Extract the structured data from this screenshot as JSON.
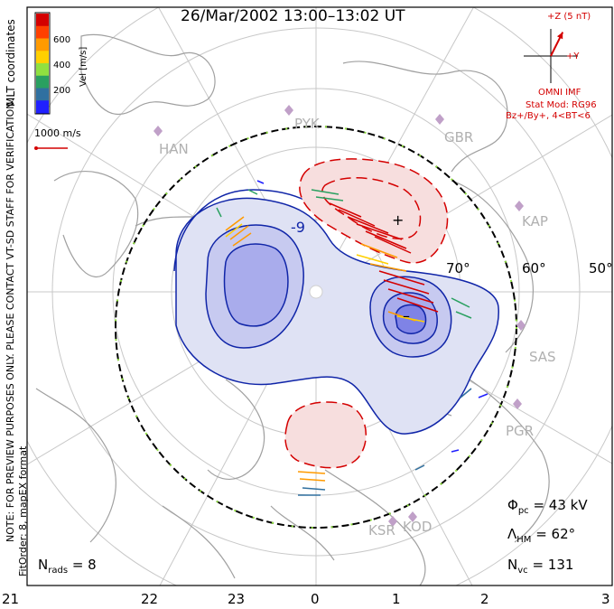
{
  "title": "26/Mar/2002 13:00–13:02 UT",
  "colorbar": {
    "label": "Vel [m/s]",
    "ticks": [
      "600",
      "400",
      "200"
    ],
    "colors": [
      "#d40000",
      "#ff4000",
      "#ff9a00",
      "#ffd000",
      "#90e040",
      "#2aa060",
      "#3070a0",
      "#2020ff"
    ]
  },
  "coord_label": "MLT coordinates",
  "scale_vector_label": "1000 m/s",
  "notice_text": "NOTE: FOR PREVIEW PURPOSES ONLY. PLEASE CONTACT VT-SD STAFF FOR VERIFICATION.",
  "fit_text": "FitOrder: 8, mapEX format",
  "imf": {
    "z_label": "+Z (5 nT)",
    "y_label": "+Y",
    "source": "OMNI IMF",
    "stat_mod": "Stat Mod: RG96",
    "condition": "Bz+/By+, 4<BT<6",
    "bz": 4.4,
    "by": 2.2
  },
  "sites": [
    "HAN",
    "PYK",
    "GBR",
    "KAP",
    "SAS",
    "PGR",
    "KSR",
    "KOD"
  ],
  "lat_labels": [
    "70°",
    "60°",
    "50°"
  ],
  "mlt_labels": [
    "21",
    "22",
    "23",
    "0",
    "1",
    "2",
    "3"
  ],
  "contour_labels": [
    "-9",
    "+",
    "–"
  ],
  "stats": {
    "phi_sym": "Φ",
    "phi_sub": "pc",
    "phi_val": "= 43 kV",
    "lam_sym": "Λ",
    "lam_sub": "HM",
    "lam_val": "= 62°",
    "nvc_sym": "N",
    "nvc_sub": "vc",
    "nvc_val": "= 131",
    "nrads_sym": "N",
    "nrads_sub": "rads",
    "nrads_val": "= 8"
  },
  "colors": {
    "negative_fill": "#dfe2f4",
    "negative_core": "#a9acec",
    "negative_line": "#1025a8",
    "positive_fill": "#f7dede",
    "positive_line": "#d40000",
    "grid": "#c8c8c8",
    "land": "#a0a0a0"
  }
}
